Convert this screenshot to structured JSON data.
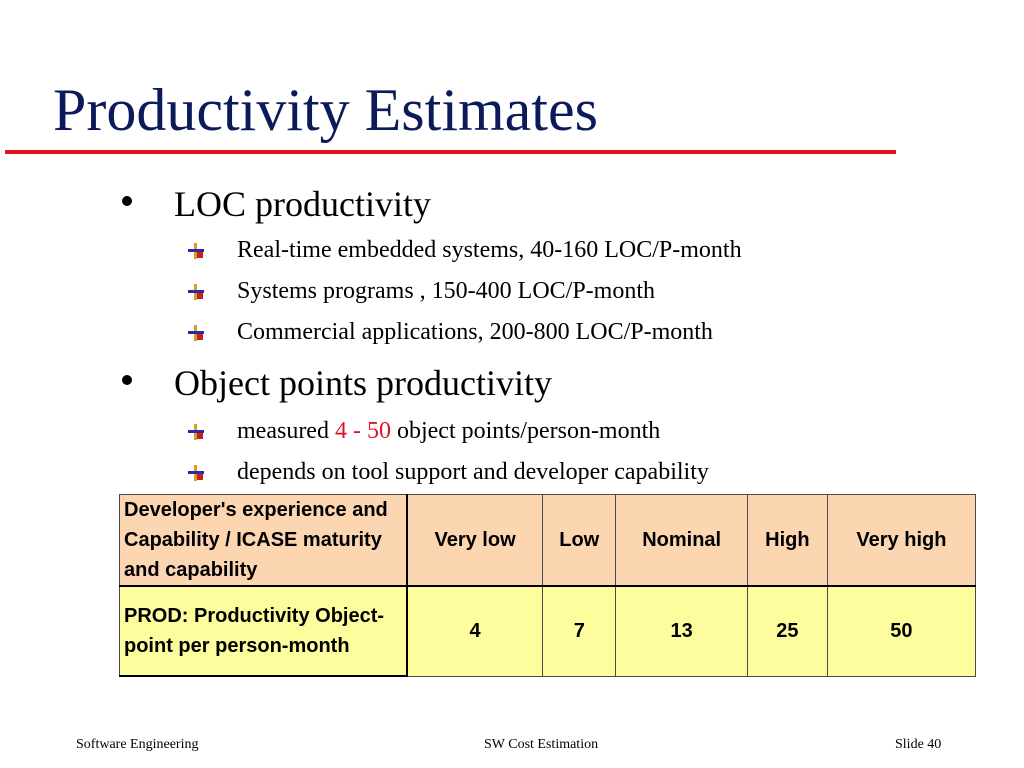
{
  "slide": {
    "title": "Productivity Estimates",
    "colors": {
      "title": "#0c1a5a",
      "rule": "#e11424",
      "highlight": "#e11424",
      "table_header_bg": "#fcd5b1",
      "table_row_bg": "#fefd9e"
    }
  },
  "bullets": [
    {
      "text": "LOC productivity",
      "subitems": [
        "Real-time embedded systems, 40-160 LOC/P-month",
        "Systems programs , 150-400 LOC/P-month",
        "Commercial applications, 200-800 LOC/P-month"
      ]
    },
    {
      "text": "Object points productivity",
      "subitems": [
        {
          "before": "measured ",
          "highlight": "4 - 50",
          "after": " object points/person-month"
        },
        "depends on tool support and developer capability"
      ]
    }
  ],
  "table": {
    "header": {
      "first": "Developer's experience and Capability / ICASE maturity and capability",
      "cols": [
        "Very low",
        "Low",
        "Nominal",
        "High",
        "Very high"
      ]
    },
    "row": {
      "first": "PROD: Productivity Object-point per person-month",
      "values": [
        "4",
        "7",
        "13",
        "25",
        "50"
      ]
    }
  },
  "footer": {
    "left": "Software Engineering",
    "center": "SW Cost Estimation",
    "right": "Slide 40"
  }
}
